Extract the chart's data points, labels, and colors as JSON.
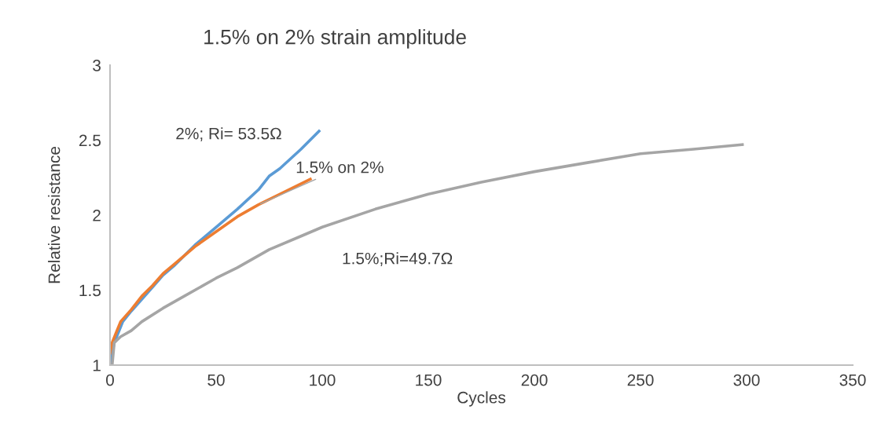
{
  "chart_data": {
    "type": "line",
    "title": "1.5% on 2% strain amplitude",
    "xlabel": "Cycles",
    "ylabel": "Relative resistance",
    "xlim": [
      0,
      350
    ],
    "xticks": [
      0,
      50,
      100,
      150,
      200,
      250,
      300,
      350
    ],
    "ylim": [
      1,
      3
    ],
    "yticks": [
      1,
      1.5,
      2,
      2.5,
      3
    ],
    "grid": false,
    "legend": false,
    "marker": "none",
    "line_style": "solid",
    "series": [
      {
        "color": "#5b9bd5",
        "x": [
          0.7,
          1,
          2,
          4,
          6,
          10,
          15,
          20,
          25,
          30,
          40,
          50,
          60,
          70,
          75,
          80,
          90,
          98.5
        ],
        "values": [
          1.0,
          1.08,
          1.15,
          1.22,
          1.29,
          1.36,
          1.44,
          1.52,
          1.6,
          1.66,
          1.8,
          1.92,
          2.04,
          2.17,
          2.26,
          2.31,
          2.44,
          2.56
        ]
      },
      {
        "color": "#ed7d31",
        "x": [
          0,
          1,
          3,
          5,
          10,
          15,
          20,
          25,
          30,
          40,
          50,
          60,
          70,
          80,
          94.4
        ],
        "values": [
          1.08,
          1.15,
          1.22,
          1.29,
          1.37,
          1.46,
          1.53,
          1.61,
          1.67,
          1.79,
          1.89,
          1.99,
          2.07,
          2.14,
          2.24
        ]
      },
      {
        "color": "#a5a5a5",
        "x": [
          1,
          2,
          5,
          10,
          15,
          25,
          35,
          50,
          60,
          75,
          90,
          100,
          125,
          150,
          175,
          200,
          225,
          250,
          275,
          298
        ],
        "values": [
          1.0,
          1.15,
          1.19,
          1.23,
          1.29,
          1.38,
          1.46,
          1.58,
          1.65,
          1.77,
          1.86,
          1.92,
          2.04,
          2.14,
          2.22,
          2.29,
          2.35,
          2.41,
          2.44,
          2.47
        ]
      }
    ],
    "annotations": [
      {
        "text": "2%; Ri= 53.5Ω",
        "x": 90,
        "y": 2.44
      },
      {
        "text": "1.5% on 2%",
        "x": 70,
        "y": 2.07
      },
      {
        "text": "1.5%;Ri=49.7Ω",
        "x": 100,
        "y": 1.92
      }
    ]
  }
}
